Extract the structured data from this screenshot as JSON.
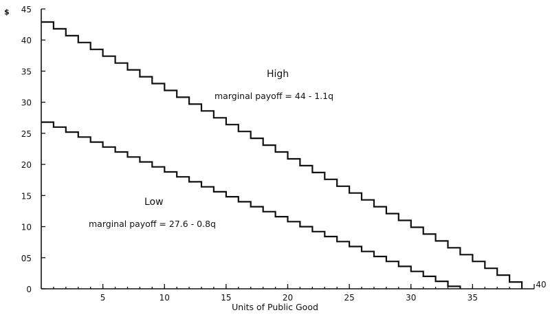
{
  "chart_data": {
    "type": "line",
    "step": true,
    "title": "",
    "xlabel": "Units of Public Good",
    "ylabel": "$",
    "xlim": [
      0,
      40
    ],
    "ylim": [
      0,
      45
    ],
    "grid": false,
    "x_ticks": [
      5,
      10,
      15,
      20,
      25,
      30,
      35,
      40
    ],
    "x_tick_labels": [
      "5",
      "10",
      "15",
      "20",
      "25",
      "30",
      "35",
      "40"
    ],
    "y_ticks": [
      0,
      5,
      10,
      15,
      20,
      25,
      30,
      35,
      40,
      45
    ],
    "y_tick_labels": [
      "0",
      "05",
      "10",
      "15",
      "20",
      "25",
      "30",
      "35",
      "40",
      "45"
    ],
    "series": [
      {
        "name": "High",
        "equation": "marginal payoff = 44 - 1.1q",
        "intercept": 44,
        "slope": -1.1,
        "q_start": 1,
        "q_end": 39,
        "x": [
          1,
          2,
          3,
          4,
          5,
          6,
          7,
          8,
          9,
          10,
          11,
          12,
          13,
          14,
          15,
          16,
          17,
          18,
          19,
          20,
          21,
          22,
          23,
          24,
          25,
          26,
          27,
          28,
          29,
          30,
          31,
          32,
          33,
          34,
          35,
          36,
          37,
          38,
          39
        ],
        "values": [
          42.9,
          41.8,
          40.7,
          39.6,
          38.5,
          37.4,
          36.3,
          35.2,
          34.1,
          33.0,
          31.9,
          30.8,
          29.7,
          28.6,
          27.5,
          26.4,
          25.3,
          24.2,
          23.1,
          22.0,
          20.9,
          19.8,
          18.7,
          17.6,
          16.5,
          15.4,
          14.3,
          13.2,
          12.1,
          11.0,
          9.9,
          8.8,
          7.7,
          6.6,
          5.5,
          4.4,
          3.3,
          2.2,
          1.1
        ]
      },
      {
        "name": "Low",
        "equation": "marginal payoff = 27.6 - 0.8q",
        "intercept": 27.6,
        "slope": -0.8,
        "q_start": 1,
        "q_end": 34,
        "x": [
          1,
          2,
          3,
          4,
          5,
          6,
          7,
          8,
          9,
          10,
          11,
          12,
          13,
          14,
          15,
          16,
          17,
          18,
          19,
          20,
          21,
          22,
          23,
          24,
          25,
          26,
          27,
          28,
          29,
          30,
          31,
          32,
          33,
          34
        ],
        "values": [
          26.8,
          26.0,
          25.2,
          24.4,
          23.6,
          22.8,
          22.0,
          21.2,
          20.4,
          19.6,
          18.8,
          18.0,
          17.2,
          16.4,
          15.6,
          14.8,
          14.0,
          13.2,
          12.4,
          11.6,
          10.8,
          10.0,
          9.2,
          8.4,
          7.6,
          6.8,
          6.0,
          5.2,
          4.4,
          3.6,
          2.8,
          2.0,
          1.2,
          0.4
        ]
      }
    ],
    "annotations": {
      "high_name": "High",
      "high_equation": "marginal payoff = 44 - 1.1q",
      "low_name": "Low",
      "low_equation": "marginal payoff = 27.6 - 0.8q"
    }
  }
}
